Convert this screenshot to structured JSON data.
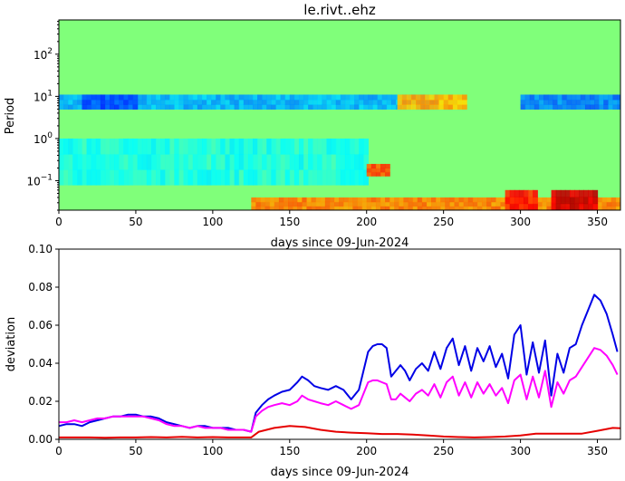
{
  "chart_data": [
    {
      "type": "heatmap",
      "title": "le.rivt..ehz",
      "xlabel": "days since 09-Jun-2024",
      "ylabel": "Period",
      "xlim": [
        0,
        365
      ],
      "ylim": [
        0.02,
        650
      ],
      "yscale": "log",
      "x_ticks": [
        0,
        50,
        100,
        150,
        200,
        250,
        300,
        350
      ],
      "y_ticks": [
        {
          "value": 0.1,
          "base": "10",
          "exp": "−1"
        },
        {
          "value": 1,
          "base": "10",
          "exp": "0"
        },
        {
          "value": 10,
          "base": "10",
          "exp": "1"
        },
        {
          "value": 100,
          "base": "10",
          "exp": "2"
        }
      ],
      "colormap": "jet",
      "background_color": "#80ff7a",
      "features": [
        {
          "x": [
            0,
            245
          ],
          "period": [
            5,
            11
          ],
          "level": 0.3,
          "desc": "low band near 10"
        },
        {
          "x": [
            15,
            50
          ],
          "period": [
            5,
            11
          ],
          "level": 0.2
        },
        {
          "x": [
            300,
            365
          ],
          "period": [
            5,
            11
          ],
          "level": 0.25
        },
        {
          "x": [
            0,
            200
          ],
          "period": [
            0.08,
            1
          ],
          "level": 0.4
        },
        {
          "x": [
            125,
            365
          ],
          "period": [
            0.02,
            0.04
          ],
          "level": 0.75
        },
        {
          "x": [
            200,
            215
          ],
          "period": [
            0.13,
            0.25
          ],
          "level": 0.8
        },
        {
          "x": [
            220,
            265
          ],
          "period": [
            5,
            11
          ],
          "level": 0.7
        },
        {
          "x": [
            290,
            310
          ],
          "period": [
            0.02,
            0.06
          ],
          "level": 0.85
        },
        {
          "x": [
            320,
            350
          ],
          "period": [
            0.02,
            0.06
          ],
          "level": 0.92
        }
      ]
    },
    {
      "type": "line",
      "xlabel": "days since 09-Jun-2024",
      "ylabel": "deviation",
      "xlim": [
        0,
        365
      ],
      "ylim": [
        0,
        0.1
      ],
      "x_ticks": [
        0,
        50,
        100,
        150,
        200,
        250,
        300,
        350
      ],
      "y_ticks": [
        "0.00",
        "0.02",
        "0.04",
        "0.06",
        "0.08",
        "0.10"
      ],
      "grid": false,
      "series": [
        {
          "color": "#0000e6",
          "x": [
            0,
            5,
            10,
            15,
            20,
            25,
            30,
            35,
            40,
            45,
            50,
            55,
            60,
            65,
            70,
            75,
            80,
            85,
            90,
            95,
            100,
            105,
            110,
            115,
            120,
            125,
            128,
            132,
            136,
            140,
            145,
            150,
            155,
            158,
            162,
            166,
            170,
            175,
            180,
            185,
            190,
            195,
            198,
            201,
            204,
            207,
            210,
            213,
            216,
            219,
            222,
            225,
            228,
            232,
            236,
            240,
            244,
            248,
            252,
            256,
            260,
            264,
            268,
            272,
            276,
            280,
            284,
            288,
            292,
            296,
            300,
            304,
            308,
            312,
            316,
            320,
            324,
            328,
            332,
            336,
            340,
            344,
            348,
            352,
            356,
            360,
            363
          ],
          "y": [
            0.007,
            0.008,
            0.008,
            0.007,
            0.009,
            0.01,
            0.011,
            0.012,
            0.012,
            0.013,
            0.013,
            0.012,
            0.012,
            0.011,
            0.009,
            0.008,
            0.007,
            0.006,
            0.007,
            0.007,
            0.006,
            0.006,
            0.006,
            0.005,
            0.005,
            0.004,
            0.014,
            0.018,
            0.021,
            0.023,
            0.025,
            0.026,
            0.03,
            0.033,
            0.031,
            0.028,
            0.027,
            0.026,
            0.028,
            0.026,
            0.021,
            0.026,
            0.036,
            0.046,
            0.049,
            0.05,
            0.05,
            0.048,
            0.033,
            0.036,
            0.039,
            0.036,
            0.031,
            0.037,
            0.04,
            0.036,
            0.046,
            0.037,
            0.048,
            0.053,
            0.039,
            0.049,
            0.036,
            0.048,
            0.041,
            0.049,
            0.038,
            0.045,
            0.032,
            0.055,
            0.06,
            0.034,
            0.051,
            0.035,
            0.052,
            0.023,
            0.045,
            0.035,
            0.048,
            0.05,
            0.06,
            0.068,
            0.076,
            0.073,
            0.066,
            0.055,
            0.046
          ]
        },
        {
          "color": "#ff00ff",
          "x": [
            0,
            5,
            10,
            15,
            20,
            25,
            30,
            35,
            40,
            45,
            50,
            55,
            60,
            65,
            70,
            75,
            80,
            85,
            90,
            95,
            100,
            105,
            110,
            115,
            120,
            125,
            128,
            132,
            136,
            140,
            145,
            150,
            155,
            158,
            162,
            166,
            170,
            175,
            180,
            185,
            190,
            195,
            198,
            201,
            204,
            207,
            210,
            213,
            216,
            219,
            222,
            225,
            228,
            232,
            236,
            240,
            244,
            248,
            252,
            256,
            260,
            264,
            268,
            272,
            276,
            280,
            284,
            288,
            292,
            296,
            300,
            304,
            308,
            312,
            316,
            320,
            324,
            328,
            332,
            336,
            340,
            344,
            348,
            352,
            356,
            360,
            363
          ],
          "y": [
            0.009,
            0.009,
            0.01,
            0.009,
            0.01,
            0.011,
            0.011,
            0.012,
            0.012,
            0.012,
            0.012,
            0.012,
            0.011,
            0.01,
            0.008,
            0.007,
            0.007,
            0.006,
            0.007,
            0.006,
            0.006,
            0.006,
            0.005,
            0.005,
            0.005,
            0.004,
            0.012,
            0.015,
            0.017,
            0.018,
            0.019,
            0.018,
            0.02,
            0.023,
            0.021,
            0.02,
            0.019,
            0.018,
            0.02,
            0.018,
            0.016,
            0.018,
            0.024,
            0.03,
            0.031,
            0.031,
            0.03,
            0.029,
            0.021,
            0.021,
            0.024,
            0.022,
            0.02,
            0.024,
            0.026,
            0.023,
            0.029,
            0.022,
            0.03,
            0.033,
            0.023,
            0.03,
            0.022,
            0.03,
            0.024,
            0.029,
            0.023,
            0.027,
            0.019,
            0.031,
            0.034,
            0.021,
            0.033,
            0.022,
            0.036,
            0.017,
            0.03,
            0.024,
            0.031,
            0.033,
            0.038,
            0.043,
            0.048,
            0.047,
            0.044,
            0.039,
            0.034
          ]
        },
        {
          "color": "#e60000",
          "x": [
            0,
            10,
            20,
            30,
            40,
            50,
            60,
            70,
            80,
            90,
            100,
            110,
            120,
            125,
            130,
            140,
            150,
            160,
            170,
            180,
            190,
            200,
            210,
            220,
            230,
            240,
            250,
            260,
            270,
            280,
            290,
            300,
            310,
            320,
            330,
            340,
            350,
            360,
            365
          ],
          "y": [
            0.001,
            0.001,
            0.001,
            0.0008,
            0.001,
            0.001,
            0.0012,
            0.001,
            0.0013,
            0.001,
            0.0012,
            0.001,
            0.001,
            0.001,
            0.004,
            0.006,
            0.007,
            0.0065,
            0.005,
            0.004,
            0.0035,
            0.0032,
            0.0028,
            0.0028,
            0.0025,
            0.002,
            0.0015,
            0.0012,
            0.001,
            0.0012,
            0.0015,
            0.002,
            0.003,
            0.003,
            0.003,
            0.003,
            0.0045,
            0.006,
            0.0058
          ]
        }
      ]
    }
  ]
}
